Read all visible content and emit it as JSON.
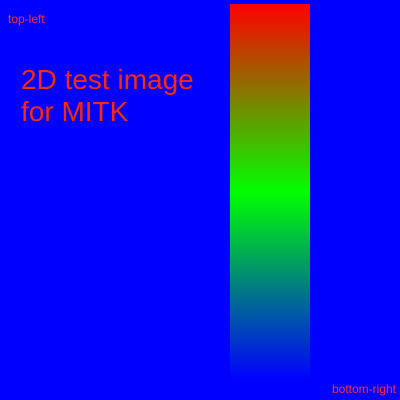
{
  "image": {
    "background_color": "#0000ff",
    "label_color": "#ff3333",
    "title_color": "#ff2a00",
    "labels": {
      "top_left": "top-left",
      "bottom_right": "bottom-right"
    },
    "title_lines": [
      "2D test image",
      "for MITK"
    ],
    "gradient_bar": {
      "direction": "top-to-bottom",
      "colors": [
        "#ff0000",
        "#00ff00",
        "#0000ff"
      ]
    }
  }
}
